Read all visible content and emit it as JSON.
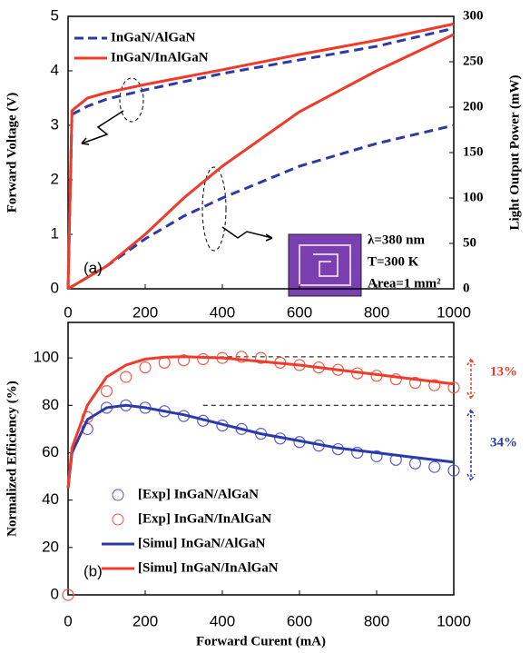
{
  "chart_data": [
    {
      "type": "line",
      "xlim": [
        0,
        1000
      ],
      "xticks": [
        0,
        200,
        400,
        600,
        800,
        1000
      ],
      "ylim": [
        0,
        5
      ],
      "yticks": [
        0,
        1,
        2,
        3,
        4,
        5
      ],
      "ylabel": "Forward Voltage (V)",
      "y2lim": [
        0,
        300
      ],
      "y2ticks": [
        0,
        50,
        100,
        150,
        200,
        250,
        300
      ],
      "y2label": "Light Output Power (mW)",
      "legend": "upper left",
      "annotations": [
        "(a)",
        "λ=380 nm",
        "T=300 K",
        "Area=1 mm²"
      ],
      "series": [
        {
          "name": "InGaN/AlGaN",
          "color": "#2b3aa8",
          "dash": true,
          "mode": "line",
          "x": [
            0,
            10,
            50,
            100,
            200,
            400,
            600,
            800,
            1000
          ],
          "values": [
            0,
            3.2,
            3.35,
            3.48,
            3.65,
            3.95,
            4.2,
            4.45,
            4.78
          ]
        },
        {
          "name": "InGaN/InAlGaN",
          "color": "#f03a2a",
          "dash": false,
          "mode": "line",
          "x": [
            0,
            10,
            50,
            100,
            200,
            400,
            600,
            800,
            1000
          ],
          "values": [
            0,
            3.27,
            3.5,
            3.6,
            3.75,
            4.02,
            4.3,
            4.56,
            4.86
          ]
        },
        {
          "color": "#2b3aa8",
          "dash": true,
          "mode": "line",
          "axis": "y2",
          "x": [
            0,
            100,
            200,
            300,
            400,
            600,
            800,
            1000
          ],
          "values": [
            0,
            25,
            55,
            80,
            100,
            135,
            160,
            180
          ]
        },
        {
          "color": "#f03a2a",
          "dash": false,
          "mode": "line",
          "axis": "y2",
          "x": [
            0,
            100,
            200,
            300,
            400,
            600,
            800,
            1000
          ],
          "values": [
            0,
            25,
            60,
            100,
            135,
            195,
            240,
            280
          ]
        }
      ]
    },
    {
      "type": "line",
      "xlim": [
        0,
        1000
      ],
      "xticks": [
        0,
        200,
        400,
        600,
        800,
        1000
      ],
      "xlabel": "Forward Curent (mA)",
      "ylim": [
        0,
        115
      ],
      "yticks": [
        0,
        20,
        40,
        60,
        80,
        100
      ],
      "ylabel": "Normalized Efficiency (%)",
      "legend": "lower left",
      "reference_lines": [
        100.5,
        80
      ],
      "annotations": [
        "(b)",
        "13%",
        "34%"
      ],
      "series": [
        {
          "name": "[Exp] InGaN/AlGaN",
          "color": "#5a5ad8",
          "mode": "markers",
          "x": [
            50,
            100,
            150,
            200,
            250,
            300,
            350,
            400,
            450,
            500,
            550,
            600,
            650,
            700,
            750,
            800,
            850,
            900,
            950,
            1000
          ],
          "values": [
            70,
            79,
            80,
            79,
            77.5,
            75.5,
            73.5,
            71.5,
            70,
            68,
            66,
            64.5,
            63,
            61.5,
            60,
            58.5,
            57,
            55.5,
            54,
            52.5
          ]
        },
        {
          "name": "[Exp] InGaN/InAlGaN",
          "color": "#f05a4a",
          "mode": "markers",
          "x": [
            0,
            50,
            100,
            150,
            200,
            250,
            300,
            350,
            400,
            450,
            500,
            550,
            600,
            650,
            700,
            750,
            800,
            850,
            900,
            950,
            1000
          ],
          "values": [
            0,
            75,
            86,
            92,
            96,
            98,
            99,
            99.5,
            100,
            100.5,
            100,
            98,
            97,
            96,
            95,
            93.5,
            92.5,
            91,
            89.5,
            88.5,
            87.5
          ]
        },
        {
          "name": "[Simu] InGaN/AlGaN",
          "color": "#2b3aa8",
          "mode": "line",
          "x": [
            0,
            10,
            50,
            100,
            150,
            200,
            300,
            400,
            500,
            600,
            700,
            800,
            900,
            1000
          ],
          "values": [
            45,
            60,
            74,
            79,
            80,
            79,
            76,
            72,
            68,
            65,
            62,
            60,
            58,
            56
          ]
        },
        {
          "name": "[Simu] InGaN/InAlGaN",
          "color": "#f03a2a",
          "mode": "line",
          "x": [
            0,
            10,
            50,
            100,
            150,
            200,
            250,
            300,
            400,
            500,
            600,
            700,
            800,
            900,
            1000
          ],
          "values": [
            45,
            62,
            80,
            92,
            97,
            99.5,
            100.3,
            100.5,
            100,
            98.5,
            97,
            95,
            93,
            91,
            89
          ]
        }
      ]
    }
  ]
}
